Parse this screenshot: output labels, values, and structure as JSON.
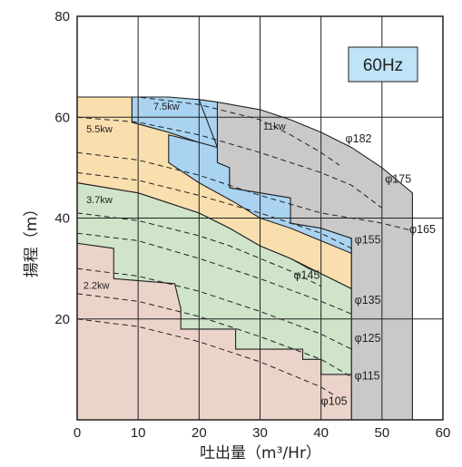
{
  "chart_data": {
    "type": "area",
    "badge": "60Hz",
    "xlabel": "吐出量（m³/Hr）",
    "ylabel": "揚程（m）",
    "xlim": [
      0,
      60
    ],
    "ylim": [
      0,
      80
    ],
    "x_ticks": [
      0,
      10,
      20,
      30,
      40,
      50,
      60
    ],
    "y_ticks": [
      20,
      40,
      60,
      80
    ],
    "grid": true,
    "colors": {
      "2.2kw": "#ecd3c9",
      "3.7kw": "#cfe4c8",
      "5.5kw": "#f9dfae",
      "7.5kw": "#a9d3f1",
      "11kw": "#c9c9c9",
      "badge": "#bfe3f7"
    },
    "regions": [
      {
        "label": "2.2kw",
        "outline": [
          [
            0,
            35
          ],
          [
            10,
            34
          ],
          [
            20,
            31
          ],
          [
            30,
            27
          ],
          [
            35,
            25
          ],
          [
            40,
            23
          ],
          [
            40,
            9
          ],
          [
            45,
            9
          ],
          [
            45,
            0
          ],
          [
            0,
            0
          ]
        ]
      },
      {
        "label": "3.7kw",
        "outline": [
          [
            0,
            47
          ],
          [
            10,
            45
          ],
          [
            20,
            41
          ],
          [
            25,
            38
          ],
          [
            30,
            34.5
          ],
          [
            35,
            32
          ],
          [
            38,
            30
          ],
          [
            40,
            29
          ],
          [
            45,
            26
          ],
          [
            45,
            9
          ],
          [
            40,
            9
          ],
          [
            40,
            12
          ],
          [
            37,
            12
          ],
          [
            37,
            14
          ],
          [
            26,
            14
          ],
          [
            26,
            18
          ],
          [
            17,
            18
          ],
          [
            17,
            22
          ],
          [
            16,
            27
          ],
          [
            6,
            28
          ],
          [
            6,
            34
          ],
          [
            0,
            35
          ]
        ]
      },
      {
        "label": "5.5kw",
        "outline": [
          [
            0,
            64
          ],
          [
            5,
            64
          ],
          [
            9,
            64
          ],
          [
            9,
            59
          ],
          [
            15,
            57
          ],
          [
            20,
            55
          ],
          [
            23,
            54
          ],
          [
            23,
            51
          ],
          [
            25,
            50
          ],
          [
            25,
            46
          ],
          [
            30,
            45
          ],
          [
            35,
            44
          ],
          [
            35,
            39
          ],
          [
            40,
            38
          ],
          [
            45,
            36
          ],
          [
            45,
            26
          ],
          [
            40,
            29
          ],
          [
            35,
            32
          ],
          [
            30,
            34.5
          ],
          [
            25,
            38
          ],
          [
            20,
            41
          ],
          [
            10,
            45
          ],
          [
            0,
            47
          ]
        ]
      },
      {
        "label": "7.5kw",
        "outline": [
          [
            9,
            64
          ],
          [
            15,
            64
          ],
          [
            20,
            63.5
          ],
          [
            23,
            63
          ],
          [
            23,
            54
          ],
          [
            20,
            55
          ],
          [
            15,
            57
          ],
          [
            9,
            59
          ]
        ]
      },
      {
        "label": "7.5kw",
        "outline": [
          [
            20,
            63.5
          ],
          [
            23,
            63
          ],
          [
            23,
            51
          ],
          [
            25,
            50
          ],
          [
            25,
            46
          ],
          [
            30,
            45
          ],
          [
            35,
            44
          ],
          [
            35,
            39
          ],
          [
            40,
            38
          ],
          [
            45,
            36
          ],
          [
            45,
            33
          ],
          [
            40,
            35.5
          ],
          [
            35,
            38
          ],
          [
            30,
            40
          ],
          [
            26,
            43
          ],
          [
            20,
            47
          ],
          [
            15,
            51
          ],
          [
            15,
            56.5
          ],
          [
            20,
            55
          ],
          [
            23,
            54
          ]
        ]
      },
      {
        "label": "11kw",
        "outline": [
          [
            23,
            63
          ],
          [
            30,
            61.5
          ],
          [
            35,
            59.5
          ],
          [
            40,
            57
          ],
          [
            45,
            54
          ],
          [
            50,
            50
          ],
          [
            55,
            45
          ],
          [
            55,
            0
          ],
          [
            45,
            0
          ],
          [
            45,
            36
          ],
          [
            40,
            38
          ],
          [
            35,
            39
          ],
          [
            35,
            44
          ],
          [
            30,
            45
          ],
          [
            25,
            46
          ],
          [
            25,
            50
          ],
          [
            23,
            51
          ]
        ]
      }
    ],
    "curves": [
      {
        "label": "φ182",
        "points": [
          [
            0,
            64
          ],
          [
            10,
            64
          ],
          [
            20,
            62.5
          ],
          [
            30,
            59.5
          ],
          [
            35,
            56.5
          ],
          [
            40,
            53
          ],
          [
            43,
            50.5
          ]
        ]
      },
      {
        "label": "φ175",
        "points": [
          [
            0,
            60
          ],
          [
            10,
            59
          ],
          [
            20,
            56.5
          ],
          [
            30,
            53
          ],
          [
            40,
            49
          ],
          [
            45,
            46.5
          ],
          [
            50,
            42
          ]
        ]
      },
      {
        "label": "φ165",
        "points": [
          [
            0,
            53
          ],
          [
            10,
            51.5
          ],
          [
            20,
            48.5
          ],
          [
            30,
            44.5
          ],
          [
            40,
            41
          ],
          [
            50,
            39
          ],
          [
            55,
            37.5
          ]
        ]
      },
      {
        "label": "φ155",
        "points": [
          [
            0,
            49
          ],
          [
            10,
            47.5
          ],
          [
            20,
            44.5
          ],
          [
            30,
            41
          ],
          [
            40,
            37
          ],
          [
            45,
            34
          ]
        ]
      },
      {
        "label": "φ145",
        "points": [
          [
            0,
            41
          ],
          [
            10,
            39.5
          ],
          [
            20,
            36.5
          ],
          [
            25,
            34.5
          ],
          [
            30,
            32
          ],
          [
            35,
            29.5
          ],
          [
            40,
            26.5
          ]
        ]
      },
      {
        "label": "φ135",
        "points": [
          [
            0,
            37
          ],
          [
            10,
            35.5
          ],
          [
            20,
            32
          ],
          [
            30,
            28
          ],
          [
            40,
            23.5
          ],
          [
            45,
            21
          ]
        ]
      },
      {
        "label": "φ125",
        "points": [
          [
            0,
            30
          ],
          [
            10,
            28.5
          ],
          [
            20,
            25.5
          ],
          [
            30,
            21.5
          ],
          [
            40,
            17
          ],
          [
            45,
            14
          ]
        ]
      },
      {
        "label": "φ115",
        "points": [
          [
            0,
            25
          ],
          [
            10,
            23.5
          ],
          [
            20,
            20.5
          ],
          [
            30,
            16.5
          ],
          [
            40,
            12
          ],
          [
            45,
            8.5
          ]
        ]
      },
      {
        "label": "φ105",
        "points": [
          [
            0,
            20
          ],
          [
            10,
            18.5
          ],
          [
            20,
            15.5
          ],
          [
            30,
            11.5
          ],
          [
            40,
            6.5
          ],
          [
            42,
            5
          ]
        ]
      }
    ],
    "region_labels": [
      {
        "text": "2.2kw",
        "x": 1,
        "y": 26
      },
      {
        "text": "3.7kw",
        "x": 1.5,
        "y": 43
      },
      {
        "text": "5.5kw",
        "x": 1.5,
        "y": 57
      },
      {
        "text": "7.5kw",
        "x": 12.5,
        "y": 61.5
      },
      {
        "text": "11kw",
        "x": 30.5,
        "y": 57.5
      }
    ],
    "curve_labels": [
      {
        "text": "φ182",
        "x": 44,
        "y": 55
      },
      {
        "text": "φ175",
        "x": 50.5,
        "y": 47
      },
      {
        "text": "φ165",
        "x": 54.5,
        "y": 37
      },
      {
        "text": "φ155",
        "x": 45.5,
        "y": 35
      },
      {
        "text": "φ145",
        "x": 35.5,
        "y": 28
      },
      {
        "text": "φ135",
        "x": 45.5,
        "y": 23
      },
      {
        "text": "φ125",
        "x": 45.5,
        "y": 15.5
      },
      {
        "text": "φ115",
        "x": 45.5,
        "y": 8
      },
      {
        "text": "φ105",
        "x": 40,
        "y": 3
      }
    ]
  }
}
